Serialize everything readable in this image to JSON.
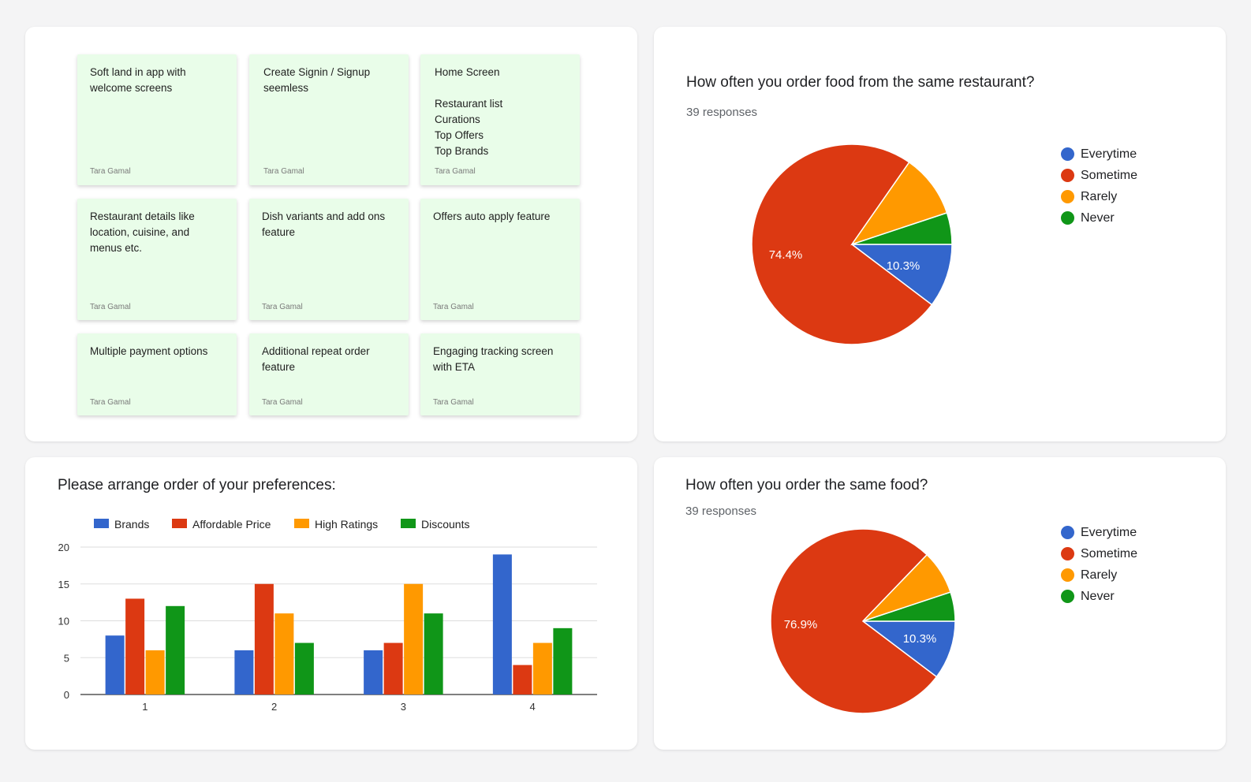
{
  "colors": {
    "blue": "#3366cc",
    "red": "#dc3912",
    "orange": "#ff9900",
    "green": "#109618"
  },
  "notes": [
    {
      "text": "Soft land in app with\nwelcome screens",
      "author": "Tara Gamal"
    },
    {
      "text": "Create Signin / Signup\nseemless",
      "author": "Tara Gamal"
    },
    {
      "text": "Home Screen\n\nRestaurant list\nCurations\nTop Offers\nTop Brands",
      "author": "Tara Gamal"
    },
    {
      "text": "Restaurant details like\nlocation, cuisine, and\nmenus etc.",
      "author": "Tara Gamal"
    },
    {
      "text": "Dish variants and add ons\nfeature",
      "author": "Tara Gamal"
    },
    {
      "text": "Offers auto apply feature",
      "author": "Tara Gamal"
    },
    {
      "text": "Multiple payment options",
      "author": "Tara Gamal"
    },
    {
      "text": "Additional repeat order\nfeature",
      "author": "Tara Gamal"
    },
    {
      "text": "Engaging tracking screen\nwith ETA",
      "author": "Tara Gamal"
    }
  ],
  "chart_data": [
    {
      "type": "pie",
      "title": "How often you order food from the same restaurant?",
      "subtitle": "39 responses",
      "labels": [
        "Everytime",
        "Sometime",
        "Rarely",
        "Never"
      ],
      "values": [
        10.3,
        74.4,
        10.2,
        5.1
      ],
      "data_labels": [
        "10.3%",
        "74.4%",
        "",
        ""
      ],
      "legend": "right"
    },
    {
      "type": "pie",
      "title": "How often you order the same food?",
      "subtitle": "39 responses",
      "labels": [
        "Everytime",
        "Sometime",
        "Rarely",
        "Never"
      ],
      "values": [
        10.3,
        76.9,
        7.7,
        5.1
      ],
      "data_labels": [
        "10.3%",
        "76.9%",
        "",
        ""
      ],
      "legend": "right"
    },
    {
      "type": "bar",
      "title": "Please arrange order of your preferences:",
      "categories": [
        "1",
        "2",
        "3",
        "4"
      ],
      "series": [
        {
          "name": "Brands",
          "values": [
            8,
            6,
            6,
            19
          ]
        },
        {
          "name": "Affordable Price",
          "values": [
            13,
            15,
            7,
            4
          ]
        },
        {
          "name": "High Ratings",
          "values": [
            6,
            11,
            15,
            7
          ]
        },
        {
          "name": "Discounts",
          "values": [
            12,
            7,
            11,
            9
          ]
        }
      ],
      "yticks": [
        "0",
        "5",
        "10",
        "15",
        "20"
      ],
      "ylim": [
        0,
        20
      ],
      "grid": true,
      "legend": "top"
    }
  ]
}
